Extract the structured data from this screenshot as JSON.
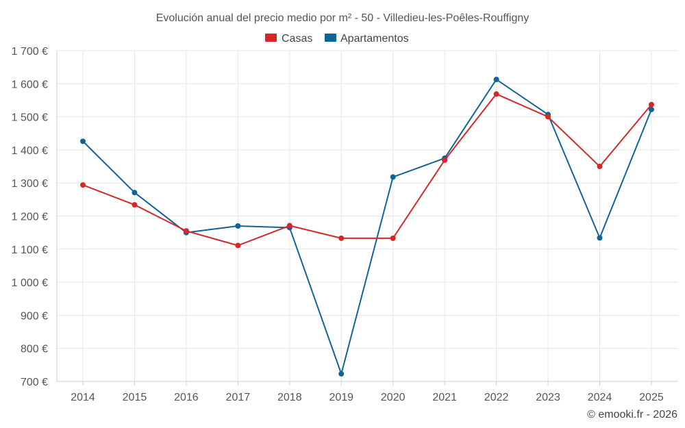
{
  "chart_data": {
    "type": "line",
    "title": "Evolución anual del precio medio por m² - 50 - Villedieu-les-Poêles-Rouffigny",
    "categories": [
      "2014",
      "2015",
      "2016",
      "2017",
      "2018",
      "2019",
      "2020",
      "2021",
      "2022",
      "2023",
      "2024",
      "2025"
    ],
    "series": [
      {
        "name": "Casas",
        "color": "#d62728",
        "values": [
          1294,
          1234,
          1155,
          1111,
          1171,
          1133,
          1133,
          1369,
          1569,
          1500,
          1350,
          1537
        ]
      },
      {
        "name": "Apartamentos",
        "color": "#0f6497",
        "values": [
          1426,
          1271,
          1150,
          1170,
          1165,
          723,
          1318,
          1375,
          1613,
          1507,
          1134,
          1522
        ]
      }
    ],
    "ylim": [
      700,
      1700
    ],
    "yticks": [
      700,
      800,
      900,
      1000,
      1100,
      1200,
      1300,
      1400,
      1500,
      1600,
      1700
    ],
    "ytick_labels": [
      "700 €",
      "800 €",
      "900 €",
      "1 000 €",
      "1 100 €",
      "1 200 €",
      "1 300 €",
      "1 400 €",
      "1 500 €",
      "1 600 €",
      "1 700 €"
    ],
    "xlabel": "",
    "ylabel": "",
    "grid": true,
    "legend_position": "top-center"
  },
  "credit": "© emooki.fr - 2026"
}
